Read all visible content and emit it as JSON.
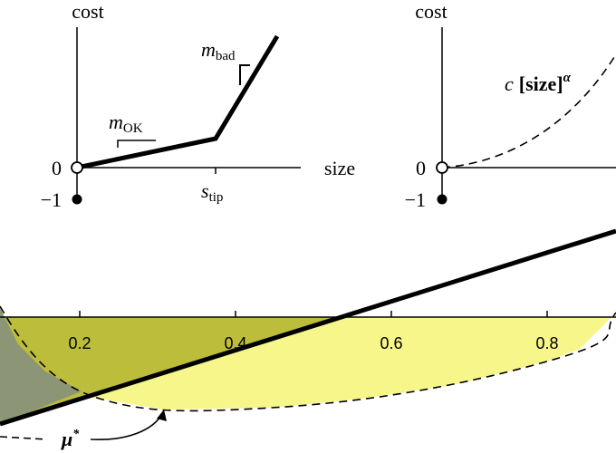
{
  "left_panel": {
    "y_label": "cost",
    "x_label": "size",
    "zero_label": "0",
    "minus_one_label": "−1",
    "slope_ok": {
      "symbol": "m",
      "subscript": "OK"
    },
    "slope_bad": {
      "symbol": "m",
      "subscript": "bad"
    },
    "tip": {
      "symbol": "s",
      "subscript": "tip"
    }
  },
  "right_panel": {
    "y_label": "cost",
    "zero_label": "0",
    "minus_one_label": "−1",
    "curve_label": {
      "coefficient": "c",
      "base": "[size]",
      "exponent": "α"
    }
  },
  "bottom_panel": {
    "tick_labels": [
      "0.2",
      "0.4",
      "0.6",
      "0.8"
    ],
    "marker": {
      "symbol": "μ",
      "superscript": "*"
    }
  }
}
